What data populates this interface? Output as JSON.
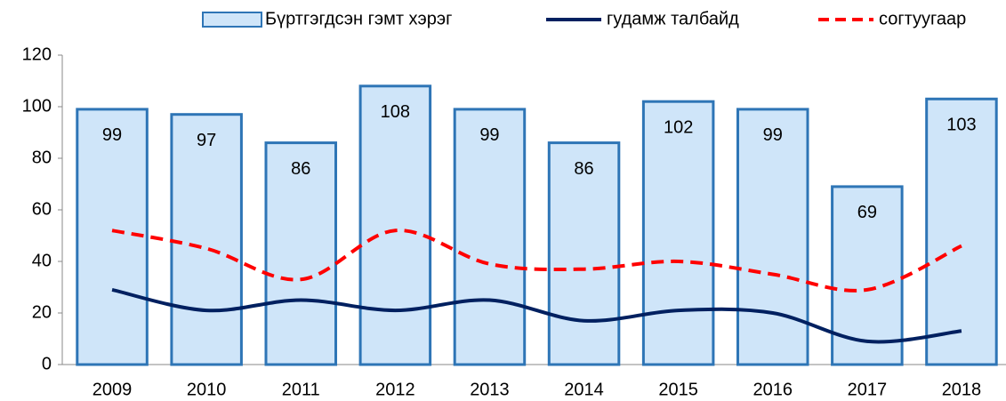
{
  "chart_data": {
    "type": "bar-line",
    "categories": [
      "2009",
      "2010",
      "2011",
      "2012",
      "2013",
      "2014",
      "2015",
      "2016",
      "2017",
      "2018"
    ],
    "series": [
      {
        "name": "Бүртгэгдсэн гэмт хэрэг",
        "type": "bar",
        "color": "#cfe5f9",
        "values": [
          99,
          97,
          86,
          108,
          99,
          86,
          102,
          99,
          69,
          103
        ]
      },
      {
        "name": "гудамж талбайд",
        "type": "line",
        "color": "#002060",
        "values": [
          29,
          21,
          25,
          21,
          25,
          17,
          21,
          20,
          9,
          13
        ]
      },
      {
        "name": "согтуугаар",
        "type": "line",
        "dashed": true,
        "color": "#ff0000",
        "values": [
          52,
          45,
          33,
          52,
          39,
          37,
          40,
          35,
          29,
          46
        ]
      }
    ],
    "ylim": [
      0,
      120
    ],
    "yticks": [
      0,
      20,
      40,
      60,
      80,
      100,
      120
    ],
    "grid": false,
    "legend": "top"
  }
}
